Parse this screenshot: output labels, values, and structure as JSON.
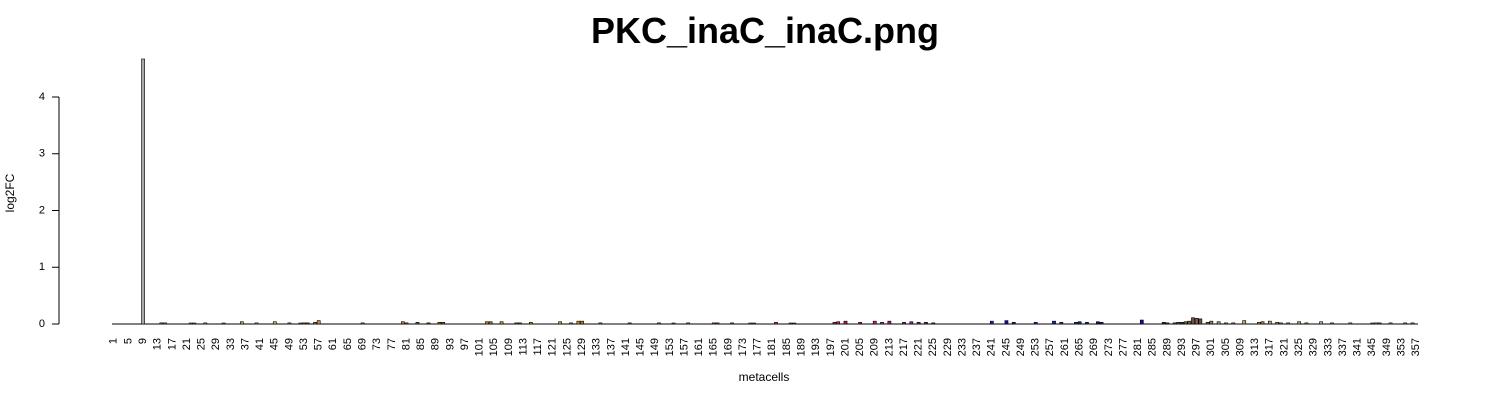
{
  "chart_data": {
    "type": "bar",
    "title": "PKC_inaC_inaC.png",
    "xlabel": "metacells",
    "ylabel": "log2FC",
    "ylim": [
      0,
      4.6
    ],
    "y_ticks": [
      0,
      1,
      2,
      3,
      4
    ],
    "x_ticks": [
      1,
      5,
      9,
      13,
      17,
      21,
      25,
      29,
      33,
      37,
      41,
      45,
      49,
      53,
      57,
      61,
      65,
      69,
      73,
      77,
      81,
      85,
      89,
      93,
      97,
      101,
      105,
      109,
      113,
      117,
      121,
      125,
      129,
      133,
      137,
      141,
      145,
      149,
      153,
      157,
      161,
      165,
      169,
      173,
      177,
      181,
      185,
      189,
      193,
      197,
      201,
      205,
      209,
      213,
      217,
      221,
      225,
      229,
      233,
      237,
      241,
      245,
      249,
      253,
      257,
      261,
      265,
      269,
      273,
      277,
      281,
      285,
      289,
      293,
      297,
      301,
      305,
      309,
      313,
      317,
      321,
      325,
      329,
      333,
      337,
      341,
      345,
      349,
      353,
      357
    ],
    "n_metacells": 357,
    "bars": [
      {
        "x": 9,
        "value": 4.67,
        "color": "#a8a8a8"
      },
      {
        "x": 14,
        "value": 0.02,
        "color": "#7a6a50"
      },
      {
        "x": 15,
        "value": 0.02,
        "color": "#9a8a60"
      },
      {
        "x": 22,
        "value": 0.01,
        "color": "#8a7a60"
      },
      {
        "x": 23,
        "value": 0.01,
        "color": "#9a8a70"
      },
      {
        "x": 26,
        "value": 0.02,
        "color": "#b09070"
      },
      {
        "x": 31,
        "value": 0.01,
        "color": "#a08060"
      },
      {
        "x": 36,
        "value": 0.04,
        "color": "#c0a060"
      },
      {
        "x": 40,
        "value": 0.02,
        "color": "#b0a070"
      },
      {
        "x": 45,
        "value": 0.04,
        "color": "#c8b070"
      },
      {
        "x": 49,
        "value": 0.02,
        "color": "#a08050"
      },
      {
        "x": 52,
        "value": 0.01,
        "color": "#907050"
      },
      {
        "x": 53,
        "value": 0.02,
        "color": "#8a6a40"
      },
      {
        "x": 54,
        "value": 0.02,
        "color": "#7a5a30"
      },
      {
        "x": 56,
        "value": 0.03,
        "color": "#a07040"
      },
      {
        "x": 57,
        "value": 0.06,
        "color": "#c09050"
      },
      {
        "x": 69,
        "value": 0.02,
        "color": "#a08060"
      },
      {
        "x": 80,
        "value": 0.04,
        "color": "#c08030"
      },
      {
        "x": 81,
        "value": 0.02,
        "color": "#a06020"
      },
      {
        "x": 84,
        "value": 0.03,
        "color": "#906030"
      },
      {
        "x": 87,
        "value": 0.02,
        "color": "#805020"
      },
      {
        "x": 90,
        "value": 0.03,
        "color": "#a07030"
      },
      {
        "x": 91,
        "value": 0.03,
        "color": "#906020"
      },
      {
        "x": 103,
        "value": 0.04,
        "color": "#c08020"
      },
      {
        "x": 104,
        "value": 0.04,
        "color": "#b07010"
      },
      {
        "x": 107,
        "value": 0.04,
        "color": "#d09020"
      },
      {
        "x": 111,
        "value": 0.02,
        "color": "#a07020"
      },
      {
        "x": 112,
        "value": 0.02,
        "color": "#906010"
      },
      {
        "x": 115,
        "value": 0.03,
        "color": "#c09030"
      },
      {
        "x": 123,
        "value": 0.04,
        "color": "#d0a030"
      },
      {
        "x": 126,
        "value": 0.02,
        "color": "#b08020"
      },
      {
        "x": 128,
        "value": 0.05,
        "color": "#d09010"
      },
      {
        "x": 129,
        "value": 0.05,
        "color": "#c08010"
      },
      {
        "x": 134,
        "value": 0.02,
        "color": "#a07030"
      },
      {
        "x": 142,
        "value": 0.02,
        "color": "#907040"
      },
      {
        "x": 150,
        "value": 0.02,
        "color": "#a07050"
      },
      {
        "x": 154,
        "value": 0.01,
        "color": "#a06050"
      },
      {
        "x": 158,
        "value": 0.02,
        "color": "#b07050"
      },
      {
        "x": 165,
        "value": 0.02,
        "color": "#c06040"
      },
      {
        "x": 166,
        "value": 0.02,
        "color": "#b05040"
      },
      {
        "x": 170,
        "value": 0.02,
        "color": "#c05040"
      },
      {
        "x": 175,
        "value": 0.01,
        "color": "#b06050"
      },
      {
        "x": 176,
        "value": 0.01,
        "color": "#906050"
      },
      {
        "x": 182,
        "value": 0.03,
        "color": "#c04050"
      },
      {
        "x": 186,
        "value": 0.01,
        "color": "#a05060"
      },
      {
        "x": 187,
        "value": 0.01,
        "color": "#905060"
      },
      {
        "x": 198,
        "value": 0.03,
        "color": "#c03060"
      },
      {
        "x": 199,
        "value": 0.04,
        "color": "#d02060"
      },
      {
        "x": 201,
        "value": 0.05,
        "color": "#c01060"
      },
      {
        "x": 205,
        "value": 0.03,
        "color": "#b02070"
      },
      {
        "x": 209,
        "value": 0.05,
        "color": "#c02080"
      },
      {
        "x": 211,
        "value": 0.03,
        "color": "#b03080"
      },
      {
        "x": 213,
        "value": 0.05,
        "color": "#a02080"
      },
      {
        "x": 217,
        "value": 0.03,
        "color": "#902080"
      },
      {
        "x": 219,
        "value": 0.04,
        "color": "#8a2090"
      },
      {
        "x": 221,
        "value": 0.03,
        "color": "#7a2090"
      },
      {
        "x": 223,
        "value": 0.03,
        "color": "#6a2090"
      },
      {
        "x": 225,
        "value": 0.02,
        "color": "#5a2090"
      },
      {
        "x": 241,
        "value": 0.05,
        "color": "#2020c0"
      },
      {
        "x": 245,
        "value": 0.06,
        "color": "#1010b0"
      },
      {
        "x": 247,
        "value": 0.03,
        "color": "#2020a0"
      },
      {
        "x": 253,
        "value": 0.03,
        "color": "#2030a0"
      },
      {
        "x": 258,
        "value": 0.05,
        "color": "#1020b0"
      },
      {
        "x": 260,
        "value": 0.03,
        "color": "#3030a0"
      },
      {
        "x": 264,
        "value": 0.03,
        "color": "#2030b0"
      },
      {
        "x": 265,
        "value": 0.04,
        "color": "#102090"
      },
      {
        "x": 267,
        "value": 0.03,
        "color": "#203090"
      },
      {
        "x": 270,
        "value": 0.04,
        "color": "#101080"
      },
      {
        "x": 271,
        "value": 0.03,
        "color": "#202080"
      },
      {
        "x": 282,
        "value": 0.07,
        "color": "#1010a0"
      },
      {
        "x": 288,
        "value": 0.03,
        "color": "#303050"
      },
      {
        "x": 289,
        "value": 0.02,
        "color": "#404050"
      },
      {
        "x": 291,
        "value": 0.02,
        "color": "#505040"
      },
      {
        "x": 292,
        "value": 0.03,
        "color": "#606040"
      },
      {
        "x": 293,
        "value": 0.03,
        "color": "#404030"
      },
      {
        "x": 294,
        "value": 0.04,
        "color": "#706040"
      },
      {
        "x": 295,
        "value": 0.05,
        "color": "#806040"
      },
      {
        "x": 296,
        "value": 0.11,
        "color": "#705040"
      },
      {
        "x": 297,
        "value": 0.1,
        "color": "#806050"
      },
      {
        "x": 298,
        "value": 0.09,
        "color": "#705030"
      },
      {
        "x": 300,
        "value": 0.03,
        "color": "#807050"
      },
      {
        "x": 301,
        "value": 0.05,
        "color": "#908060"
      },
      {
        "x": 303,
        "value": 0.04,
        "color": "#a09070"
      },
      {
        "x": 305,
        "value": 0.02,
        "color": "#a08050"
      },
      {
        "x": 307,
        "value": 0.02,
        "color": "#908050"
      },
      {
        "x": 310,
        "value": 0.06,
        "color": "#c0a060"
      },
      {
        "x": 314,
        "value": 0.03,
        "color": "#b09060"
      },
      {
        "x": 315,
        "value": 0.04,
        "color": "#a08050"
      },
      {
        "x": 317,
        "value": 0.05,
        "color": "#c0a050"
      },
      {
        "x": 319,
        "value": 0.03,
        "color": "#a09060"
      },
      {
        "x": 320,
        "value": 0.02,
        "color": "#908060"
      },
      {
        "x": 322,
        "value": 0.02,
        "color": "#a09070"
      },
      {
        "x": 325,
        "value": 0.04,
        "color": "#b0a070"
      },
      {
        "x": 327,
        "value": 0.02,
        "color": "#a09060"
      },
      {
        "x": 331,
        "value": 0.04,
        "color": "#c0b080"
      },
      {
        "x": 334,
        "value": 0.02,
        "color": "#a09070"
      },
      {
        "x": 339,
        "value": 0.02,
        "color": "#909070"
      },
      {
        "x": 345,
        "value": 0.01,
        "color": "#808060"
      },
      {
        "x": 346,
        "value": 0.02,
        "color": "#909060"
      },
      {
        "x": 347,
        "value": 0.02,
        "color": "#707050"
      },
      {
        "x": 350,
        "value": 0.02,
        "color": "#80a070"
      },
      {
        "x": 354,
        "value": 0.02,
        "color": "#70a080"
      },
      {
        "x": 356,
        "value": 0.02,
        "color": "#60a080"
      }
    ]
  }
}
